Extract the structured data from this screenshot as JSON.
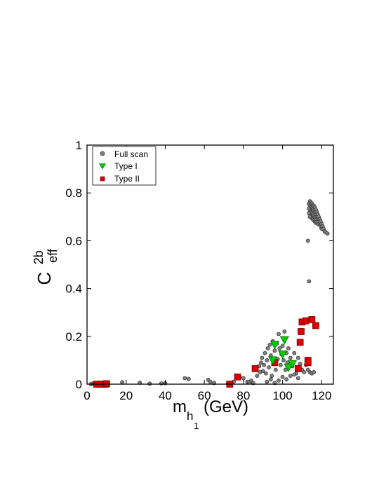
{
  "chart_data": {
    "type": "scatter",
    "xlim": [
      0,
      126
    ],
    "ylim": [
      0,
      1
    ],
    "x_ticks": [
      "0",
      "20",
      "40",
      "60",
      "80",
      "100",
      "120"
    ],
    "y_ticks": [
      "0",
      "0.2",
      "0.4",
      "0.6",
      "0.8",
      "1"
    ],
    "xlabel": {
      "main": "m",
      "sub": "h",
      "subsub": "1",
      "unit": "(GeV)"
    },
    "ylabel": {
      "main": "C",
      "sup": "2b",
      "sub": "eff"
    },
    "legend_position": "top-left",
    "grid": false,
    "series": [
      {
        "name": "Full scan",
        "marker": "circle",
        "color": "#808080",
        "points": [
          [
            2,
            0
          ],
          [
            3,
            0.003
          ],
          [
            3.5,
            0
          ],
          [
            4,
            0.002
          ],
          [
            4.5,
            0
          ],
          [
            5,
            0.004
          ],
          [
            5.5,
            0.001
          ],
          [
            6,
            0
          ],
          [
            6.5,
            0.003
          ],
          [
            7,
            0
          ],
          [
            7.5,
            0.002
          ],
          [
            8,
            0.001
          ],
          [
            9,
            0
          ],
          [
            10,
            0.002
          ],
          [
            18,
            0.008
          ],
          [
            27,
            0.006
          ],
          [
            32,
            0.002
          ],
          [
            38,
            0.003
          ],
          [
            40,
            0.004
          ],
          [
            50,
            0.025
          ],
          [
            52,
            0.022
          ],
          [
            62,
            0.018
          ],
          [
            63,
            0.01
          ],
          [
            65,
            0.005
          ],
          [
            72,
            0.002
          ],
          [
            75,
            0.01
          ],
          [
            78,
            0.03
          ],
          [
            80,
            0.025
          ],
          [
            82,
            0.01
          ],
          [
            83,
            0.008
          ],
          [
            84,
            0.015
          ],
          [
            85,
            0.005
          ],
          [
            86,
            0.06
          ],
          [
            87,
            0.035
          ],
          [
            88,
            0.075
          ],
          [
            88.5,
            0.05
          ],
          [
            89,
            0.09
          ],
          [
            89.5,
            0.11
          ],
          [
            90,
            0.055
          ],
          [
            90.5,
            0.08
          ],
          [
            91,
            0.13
          ],
          [
            91.5,
            0.045
          ],
          [
            92,
            0.1
          ],
          [
            92.5,
            0.15
          ],
          [
            93,
            0.07
          ],
          [
            93.5,
            0.165
          ],
          [
            94,
            0.12
          ],
          [
            94.5,
            0.035
          ],
          [
            95,
            0.18
          ],
          [
            95.5,
            0.09
          ],
          [
            96,
            0.14
          ],
          [
            96.5,
            0.06
          ],
          [
            97,
            0.17
          ],
          [
            97.5,
            0.105
          ],
          [
            98,
            0.21
          ],
          [
            98.5,
            0.15
          ],
          [
            99,
            0.08
          ],
          [
            99.5,
            0.125
          ],
          [
            100,
            0.16
          ],
          [
            100.5,
            0.1
          ],
          [
            101,
            0.22
          ],
          [
            101.5,
            0.06
          ],
          [
            102,
            0.13
          ],
          [
            102.5,
            0.09
          ],
          [
            103,
            0.15
          ],
          [
            104,
            0.11
          ],
          [
            105,
            0.075
          ],
          [
            106,
            0.13
          ],
          [
            107,
            0.045
          ],
          [
            108,
            0.11
          ],
          [
            109,
            0.085
          ],
          [
            110,
            0.06
          ],
          [
            111,
            0.05
          ],
          [
            112,
            0.08
          ],
          [
            113,
            0.06
          ],
          [
            114,
            0.05
          ],
          [
            115,
            0.045
          ],
          [
            116,
            0.05
          ],
          [
            92,
            0.01
          ],
          [
            94,
            0.02
          ],
          [
            96,
            0.005
          ],
          [
            98,
            0.015
          ],
          [
            100,
            0.03
          ],
          [
            102,
            0.02
          ],
          [
            104,
            0.035
          ],
          [
            106,
            0.04
          ],
          [
            108,
            0.025
          ],
          [
            113,
            0.6
          ],
          [
            113.5,
            0.43
          ],
          [
            113.5,
            0.755
          ],
          [
            114,
            0.765
          ],
          [
            114,
            0.745
          ],
          [
            114,
            0.725
          ],
          [
            114.5,
            0.76
          ],
          [
            114.5,
            0.74
          ],
          [
            114.5,
            0.72
          ],
          [
            114.5,
            0.705
          ],
          [
            115,
            0.755
          ],
          [
            115,
            0.735
          ],
          [
            115,
            0.715
          ],
          [
            115,
            0.695
          ],
          [
            115.5,
            0.75
          ],
          [
            115.5,
            0.73
          ],
          [
            115.5,
            0.71
          ],
          [
            115.5,
            0.69
          ],
          [
            116,
            0.745
          ],
          [
            116,
            0.725
          ],
          [
            116,
            0.705
          ],
          [
            116,
            0.685
          ],
          [
            116.5,
            0.74
          ],
          [
            116.5,
            0.72
          ],
          [
            116.5,
            0.7
          ],
          [
            116.5,
            0.68
          ],
          [
            117,
            0.73
          ],
          [
            117,
            0.71
          ],
          [
            117,
            0.69
          ],
          [
            117,
            0.675
          ],
          [
            117.5,
            0.72
          ],
          [
            117.5,
            0.7
          ],
          [
            117.5,
            0.68
          ],
          [
            118,
            0.71
          ],
          [
            118,
            0.69
          ],
          [
            118,
            0.67
          ],
          [
            118.5,
            0.7
          ],
          [
            118.5,
            0.68
          ],
          [
            119,
            0.69
          ],
          [
            119,
            0.67
          ],
          [
            119.5,
            0.68
          ],
          [
            119.5,
            0.66
          ],
          [
            120,
            0.67
          ],
          [
            120,
            0.65
          ],
          [
            120.5,
            0.66
          ],
          [
            121,
            0.65
          ],
          [
            121.5,
            0.64
          ],
          [
            122,
            0.635
          ],
          [
            123,
            0.63
          ],
          [
            113.5,
            0.735
          ],
          [
            113.5,
            0.715
          ],
          [
            114,
            0.7
          ]
        ]
      },
      {
        "name": "Type I",
        "marker": "triangle-down",
        "color": "#00cc00",
        "points": [
          [
            101,
            0.185
          ],
          [
            95,
            0.1
          ],
          [
            100,
            0.125
          ],
          [
            103,
            0.07
          ],
          [
            105,
            0.085
          ],
          [
            96,
            0.165
          ]
        ]
      },
      {
        "name": "Type II",
        "marker": "square",
        "color": "#dd0000",
        "points": [
          [
            5,
            0
          ],
          [
            7,
            0
          ],
          [
            8,
            0
          ],
          [
            9.5,
            0
          ],
          [
            10,
            0.002
          ],
          [
            73,
            0
          ],
          [
            77,
            0.03
          ],
          [
            86,
            0.065
          ],
          [
            96,
            0.09
          ],
          [
            108,
            0.065
          ],
          [
            109,
            0.175
          ],
          [
            109.5,
            0.22
          ],
          [
            110,
            0.26
          ],
          [
            112,
            0.265
          ],
          [
            113,
            0.1
          ],
          [
            113,
            0.09
          ],
          [
            115,
            0.27
          ],
          [
            117,
            0.245
          ]
        ]
      }
    ]
  }
}
